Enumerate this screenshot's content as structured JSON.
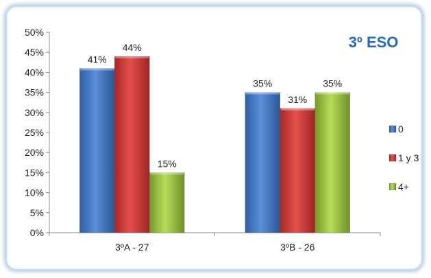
{
  "chart_data": {
    "type": "bar",
    "title": "3º ESO",
    "categories": [
      "3ºA - 27",
      "3ºB - 26"
    ],
    "series": [
      {
        "name": "0",
        "values": [
          41,
          35
        ],
        "color": "#3f73c4"
      },
      {
        "name": "1 y 3",
        "values": [
          44,
          31
        ],
        "color": "#d33a37"
      },
      {
        "name": "4+",
        "values": [
          15,
          35
        ],
        "color": "#97c33c"
      }
    ],
    "data_labels": [
      [
        "41%",
        "35%"
      ],
      [
        "44%",
        "31%"
      ],
      [
        "15%",
        "35%"
      ]
    ],
    "ylim": [
      0,
      50
    ],
    "yticks": [
      "0%",
      "5%",
      "10%",
      "15%",
      "20%",
      "25%",
      "30%",
      "35%",
      "40%",
      "45%",
      "50%"
    ],
    "xlabel": "",
    "ylabel": "",
    "legend_position": "right",
    "grid": false
  }
}
